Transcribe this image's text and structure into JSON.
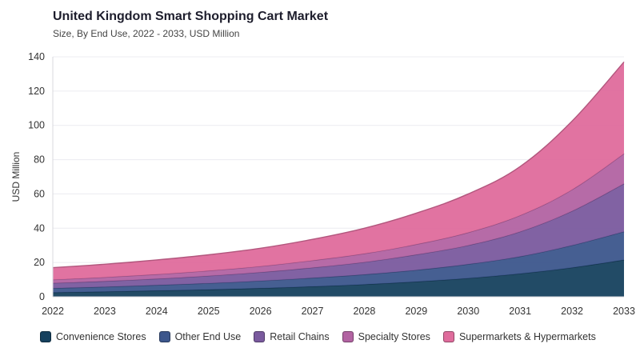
{
  "chart_data": {
    "type": "area",
    "stacked": true,
    "title": "United Kingdom Smart Shopping Cart Market",
    "subtitle": "Size, By End Use, 2022 - 2033, USD Million",
    "xlabel": "",
    "ylabel": "USD Million",
    "ylim": [
      0,
      140
    ],
    "yticks": [
      0,
      20,
      40,
      60,
      80,
      100,
      120,
      140
    ],
    "categories": [
      "2022",
      "2023",
      "2024",
      "2025",
      "2026",
      "2027",
      "2028",
      "2029",
      "2030",
      "2031",
      "2032",
      "2033"
    ],
    "grid": "horizontal",
    "legend_position": "bottom",
    "series": [
      {
        "name": "Convenience Stores",
        "color": "#16415e",
        "values": [
          2.5,
          3.0,
          3.6,
          4.2,
          5.0,
          6.0,
          7.2,
          8.8,
          10.8,
          13.5,
          17.0,
          21.5
        ]
      },
      {
        "name": "Other End Use",
        "color": "#3c568c",
        "values": [
          2.5,
          2.8,
          3.2,
          3.7,
          4.3,
          5.0,
          5.8,
          6.8,
          8.2,
          10.0,
          13.0,
          16.5
        ]
      },
      {
        "name": "Retail Chains",
        "color": "#7a5a9e",
        "values": [
          3.0,
          3.3,
          3.7,
          4.3,
          5.0,
          6.0,
          7.2,
          9.0,
          11.0,
          14.5,
          20.0,
          28.0
        ]
      },
      {
        "name": "Specialty Stores",
        "color": "#b263a2",
        "values": [
          2.0,
          2.3,
          2.6,
          3.0,
          3.5,
          4.2,
          5.0,
          6.0,
          7.5,
          9.5,
          12.5,
          17.5
        ]
      },
      {
        "name": "Supermarkets & Hypermarkets",
        "color": "#df6c9c",
        "values": [
          7.0,
          7.6,
          8.4,
          9.3,
          10.5,
          12.3,
          14.8,
          18.2,
          22.5,
          28.5,
          40.0,
          53.5
        ]
      }
    ]
  }
}
